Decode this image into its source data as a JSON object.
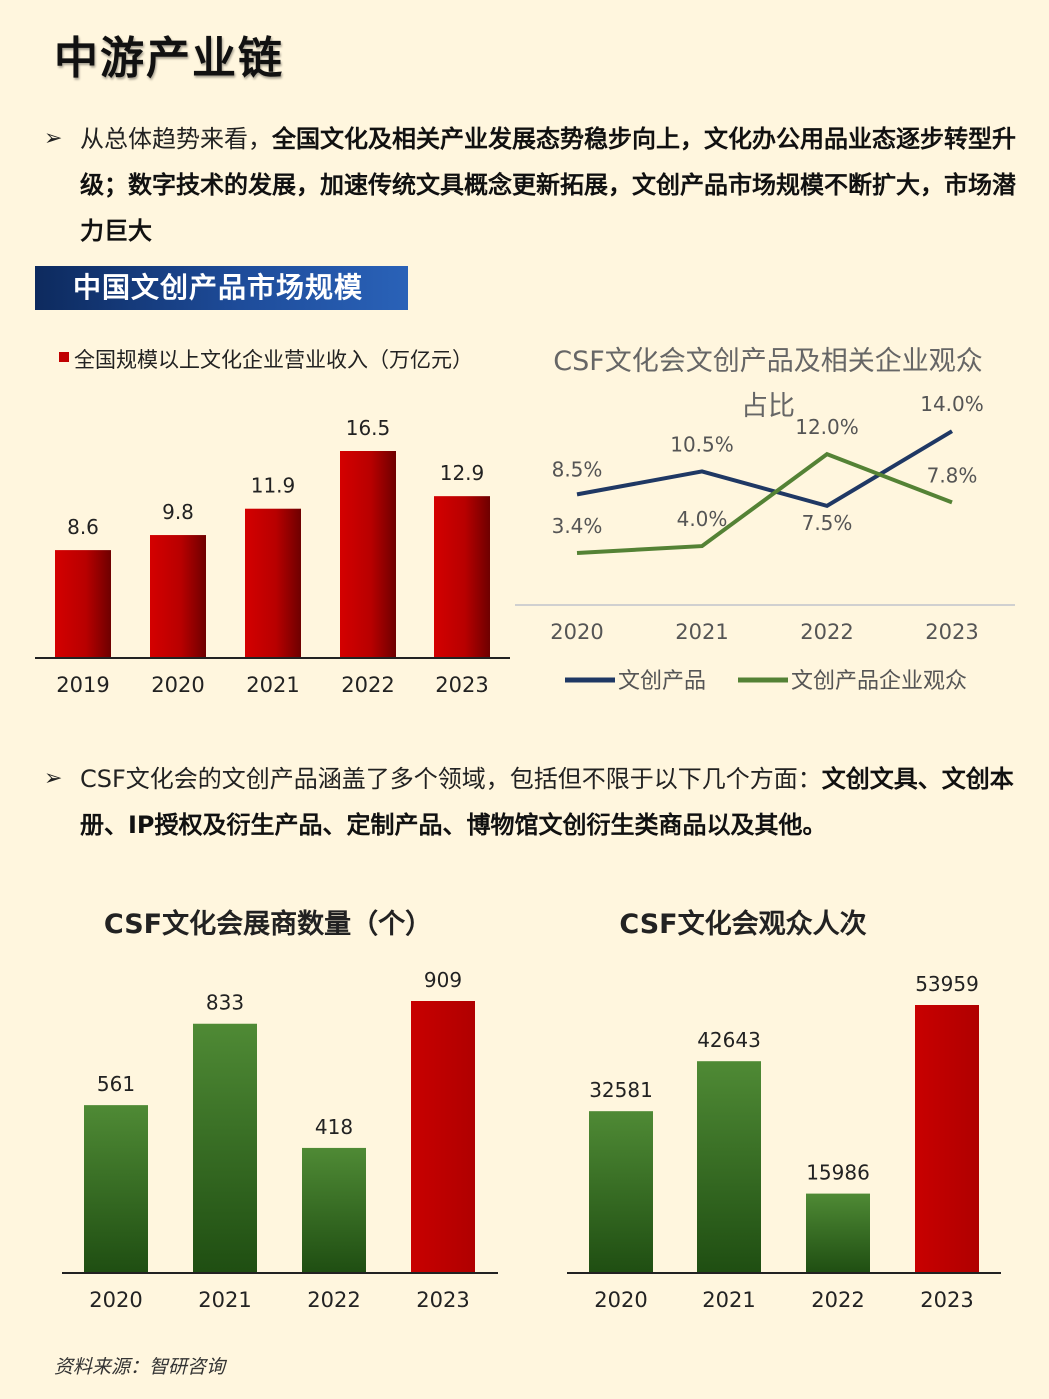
{
  "page": {
    "title": "中游产业链",
    "bullet1": {
      "plain": "从总体趋势来看，",
      "bold": "全国文化及相关产业发展态势稳步向上，文化办公用品业态逐步转型升级；数字技术的发展，加速传统文具概念更新拓展，文创产品市场规模不断扩大，市场潜力巨大"
    },
    "section_title": "中国文创产品市场规模",
    "bullet2": {
      "plain": "CSF文化会的文创产品涵盖了多个领域，包括但不限于以下几个方面：",
      "bold": "文创文具、文创本册、IP授权及衍生产品、定制产品、博物馆文创衍生类商品以及其他。"
    },
    "source": "资料来源：智研咨询"
  },
  "chart_data": [
    {
      "type": "bar",
      "title": "",
      "legend": [
        "全国规模以上文化企业营业收入（万亿元）"
      ],
      "categories": [
        "2019",
        "2020",
        "2021",
        "2022",
        "2023"
      ],
      "values": [
        8.6,
        9.8,
        11.9,
        16.5,
        12.9
      ],
      "value_labels": [
        "8.6",
        "9.8",
        "11.9",
        "16.5",
        "12.9"
      ],
      "ylim": [
        0,
        18
      ],
      "colors": {
        "bar": "#C00000"
      }
    },
    {
      "type": "line",
      "title": "CSF文化会文创产品及相关企业观众占比",
      "categories": [
        "2020",
        "2021",
        "2022",
        "2023"
      ],
      "series": [
        {
          "name": "文创产品",
          "values": [
            8.5,
            10.5,
            7.5,
            14.0
          ],
          "labels": [
            "8.5%",
            "10.5%",
            "7.5%",
            "14.0%"
          ],
          "color": "#1F3864"
        },
        {
          "name": "文创产品企业观众",
          "values": [
            3.4,
            4.0,
            12.0,
            7.8
          ],
          "labels": [
            "3.4%",
            "4.0%",
            "12.0%",
            "7.8%"
          ],
          "color": "#548235"
        }
      ],
      "ylim": [
        0,
        16
      ]
    },
    {
      "type": "bar",
      "title": "CSF文化会展商数量（个）",
      "categories": [
        "2020",
        "2021",
        "2022",
        "2023"
      ],
      "values": [
        561,
        833,
        418,
        909
      ],
      "value_labels": [
        "561",
        "833",
        "418",
        "909"
      ],
      "ylim": [
        0,
        909
      ],
      "colors": {
        "bar": "#548235",
        "highlight": "#C00000"
      }
    },
    {
      "type": "bar",
      "title": "CSF文化会观众人次",
      "categories": [
        "2020",
        "2021",
        "2022",
        "2023"
      ],
      "values": [
        32581,
        42643,
        15986,
        53959
      ],
      "value_labels": [
        "32581",
        "42643",
        "15986",
        "53959"
      ],
      "ylim": [
        0,
        53959
      ],
      "colors": {
        "bar": "#548235",
        "highlight": "#C00000"
      }
    }
  ]
}
